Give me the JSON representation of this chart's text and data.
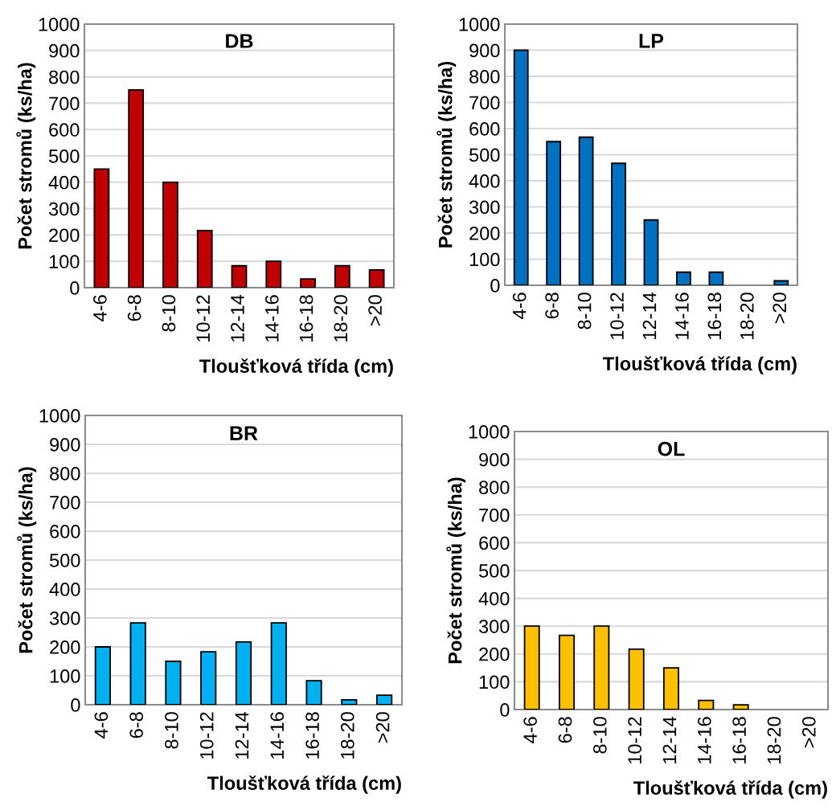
{
  "chart_data": [
    {
      "type": "bar",
      "title": "DB",
      "xlabel": "Tloušťková třída (cm)",
      "ylabel": "Počet stromů (ks/ha)",
      "categories": [
        "4-6",
        "6-8",
        "8-10",
        "10-12",
        "12-14",
        "14-16",
        "16-18",
        "18-20",
        ">20"
      ],
      "values": [
        450,
        750,
        400,
        217,
        83,
        100,
        33,
        83,
        67
      ],
      "color": "#c00000",
      "ylim": [
        0,
        1000
      ],
      "yticks": [
        0,
        100,
        200,
        300,
        400,
        500,
        600,
        700,
        800,
        900,
        1000
      ],
      "grid": "y",
      "legend": false
    },
    {
      "type": "bar",
      "title": "LP",
      "xlabel": "Tloušťková třída (cm)",
      "ylabel": "Počet stromů (ks/ha)",
      "categories": [
        "4-6",
        "6-8",
        "8-10",
        "10-12",
        "12-14",
        "14-16",
        "16-18",
        "18-20",
        ">20"
      ],
      "values": [
        900,
        550,
        567,
        467,
        250,
        50,
        50,
        0,
        17
      ],
      "color": "#0070c0",
      "ylim": [
        0,
        1000
      ],
      "yticks": [
        0,
        100,
        200,
        300,
        400,
        500,
        600,
        700,
        800,
        900,
        1000
      ],
      "grid": "y",
      "legend": false
    },
    {
      "type": "bar",
      "title": "BR",
      "xlabel": "Tloušťková třída (cm)",
      "ylabel": "Počet stromů (ks/ha)",
      "categories": [
        "4-6",
        "6-8",
        "8-10",
        "10-12",
        "12-14",
        "14-16",
        "16-18",
        "18-20",
        ">20"
      ],
      "values": [
        200,
        283,
        150,
        183,
        217,
        283,
        83,
        17,
        33
      ],
      "color": "#00b0f0",
      "ylim": [
        0,
        1000
      ],
      "yticks": [
        0,
        100,
        200,
        300,
        400,
        500,
        600,
        700,
        800,
        900,
        1000
      ],
      "grid": "y",
      "legend": false
    },
    {
      "type": "bar",
      "title": "OL",
      "xlabel": "Tloušťková třída (cm)",
      "ylabel": "Počet stromů (ks/ha)",
      "categories": [
        "4-6",
        "6-8",
        "8-10",
        "10-12",
        "12-14",
        "14-16",
        "16-18",
        "18-20",
        ">20"
      ],
      "values": [
        300,
        267,
        300,
        217,
        150,
        33,
        17,
        0,
        0
      ],
      "color": "#ffc000",
      "ylim": [
        0,
        1000
      ],
      "yticks": [
        0,
        100,
        200,
        300,
        400,
        500,
        600,
        700,
        800,
        900,
        1000
      ],
      "grid": "y",
      "legend": false
    }
  ]
}
